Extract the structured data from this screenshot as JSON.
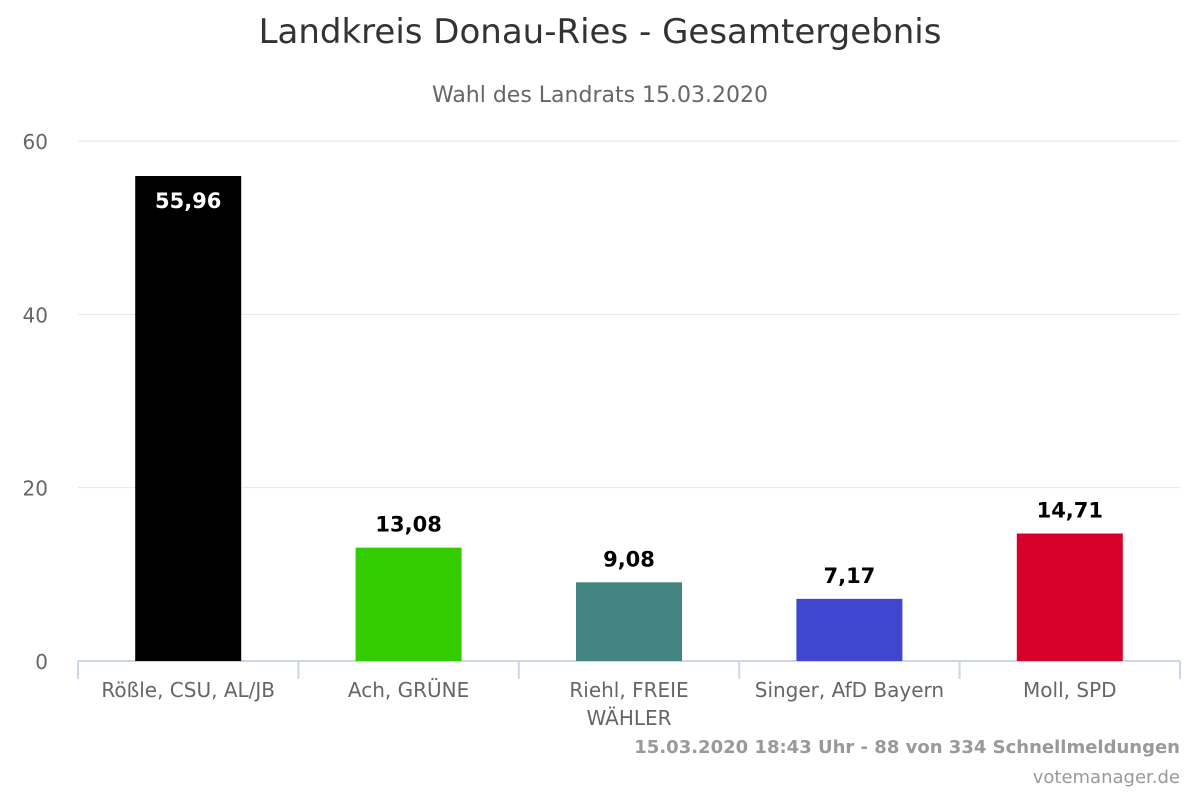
{
  "chart_data": {
    "type": "bar",
    "title": "Landkreis Donau-Ries - Gesamtergebnis",
    "subtitle": "Wahl des Landrats 15.03.2020",
    "categories": [
      "Rößle, CSU, AL/JB",
      "Ach, GRÜNE",
      "Riehl, FREIE WÄHLER",
      "Singer, AfD Bayern",
      "Moll, SPD"
    ],
    "category_lines": [
      [
        "Rößle, CSU, AL/JB"
      ],
      [
        "Ach, GRÜNE"
      ],
      [
        "Riehl, FREIE",
        "WÄHLER"
      ],
      [
        "Singer, AfD Bayern"
      ],
      [
        "Moll, SPD"
      ]
    ],
    "values": [
      55.96,
      13.08,
      9.08,
      7.17,
      14.71
    ],
    "value_labels": [
      "55,96",
      "13,08",
      "9,08",
      "7,17",
      "14,71"
    ],
    "colors": [
      "#000000",
      "#33cc00",
      "#458581",
      "#4046cf",
      "#d7002b"
    ],
    "ylim": [
      0,
      60
    ],
    "yticks": [
      0,
      20,
      40,
      60
    ],
    "grid": true,
    "legend": "none",
    "xlabel": "",
    "ylabel": ""
  },
  "footer": {
    "status": "15.03.2020 18:43 Uhr - 88 von 334 Schnellmeldungen",
    "credit": "votemanager.de"
  }
}
